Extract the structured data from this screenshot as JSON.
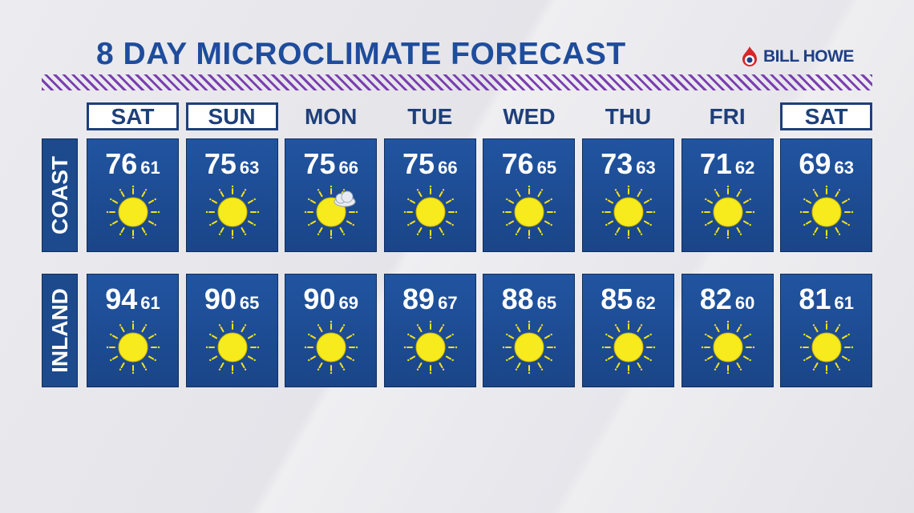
{
  "header": {
    "title": "8 DAY MICROCLIMATE FORECAST",
    "logo": "BILL HOWE"
  },
  "days": [
    "SAT",
    "SUN",
    "MON",
    "TUE",
    "WED",
    "THU",
    "FRI",
    "SAT"
  ],
  "regions": [
    {
      "name": "COAST",
      "highs": [
        "76",
        "75",
        "75",
        "75",
        "76",
        "73",
        "71",
        "69"
      ],
      "lows": [
        "61",
        "63",
        "66",
        "66",
        "65",
        "63",
        "62",
        "63"
      ]
    },
    {
      "name": "INLAND",
      "highs": [
        "94",
        "90",
        "90",
        "89",
        "88",
        "85",
        "82",
        "81"
      ],
      "lows": [
        "61",
        "65",
        "69",
        "67",
        "65",
        "62",
        "60",
        "61"
      ]
    }
  ]
}
